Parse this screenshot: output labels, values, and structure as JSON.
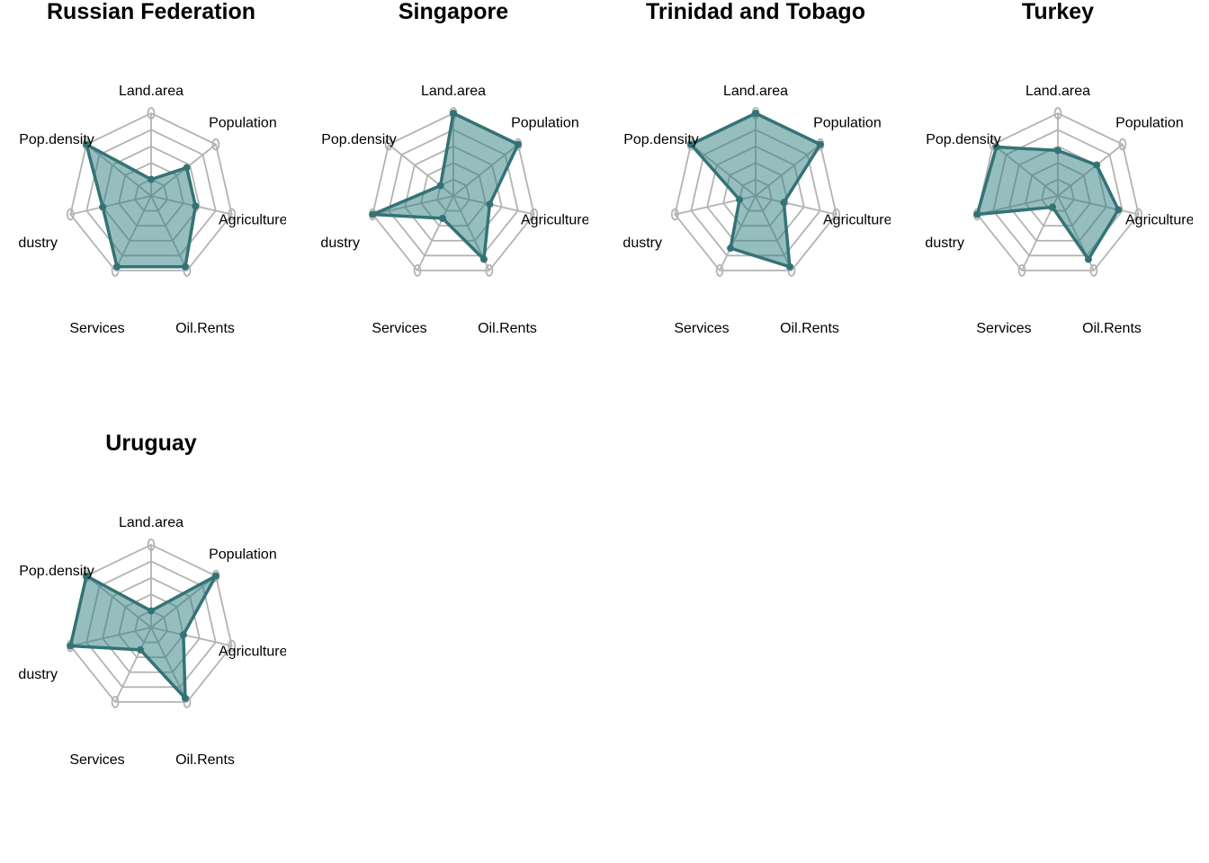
{
  "chart_data": {
    "type": "radar",
    "axes": [
      "Land.area",
      "Population",
      "Agriculture",
      "Oil.Rents",
      "Services",
      "Industry",
      "Pop.density"
    ],
    "axis_display": [
      "Land.area",
      "Population",
      "Agriculture",
      "Oil.Rents",
      "Services",
      "dustry",
      "Pop.density"
    ],
    "rlim": [
      0,
      1
    ],
    "grid_levels": 5,
    "fill_color": "#2e7d80",
    "fill_opacity": 0.5,
    "line_color": "#347375",
    "grid_color": "#b3b3b3",
    "panels": [
      {
        "title": "Russian Federation",
        "values": [
          0.2,
          0.55,
          0.55,
          0.95,
          0.95,
          0.6,
          1.0
        ]
      },
      {
        "title": "Singapore",
        "values": [
          1.0,
          1.0,
          0.45,
          0.85,
          0.3,
          1.0,
          0.2
        ]
      },
      {
        "title": "Trinidad and Tobago",
        "values": [
          1.0,
          1.0,
          0.35,
          0.95,
          0.7,
          0.2,
          1.0
        ]
      },
      {
        "title": "Turkey",
        "values": [
          0.55,
          0.6,
          0.75,
          0.85,
          0.15,
          1.0,
          0.95
        ]
      },
      {
        "title": "Uruguay",
        "values": [
          0.2,
          1.0,
          0.4,
          0.95,
          0.3,
          1.0,
          1.0
        ]
      }
    ]
  }
}
